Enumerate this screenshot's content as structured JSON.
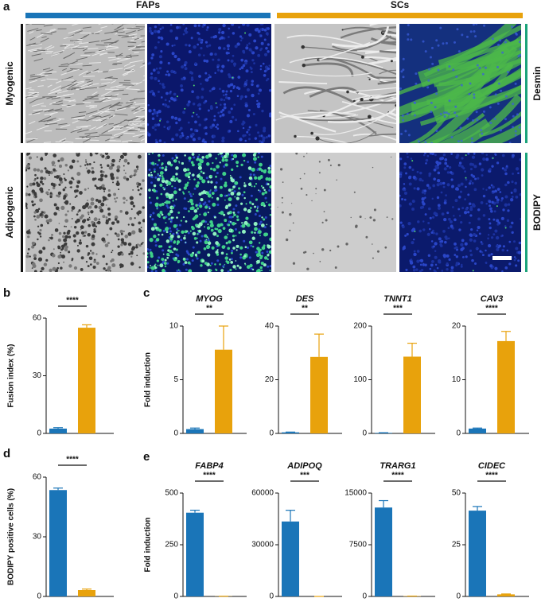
{
  "panel_a": {
    "label": "a",
    "columns": [
      "FAPs",
      "SCs"
    ],
    "column_colors": [
      "#1a75b8",
      "#e8a20c"
    ],
    "rows": [
      "Myogenic",
      "Adipogenic"
    ],
    "stains": [
      "Desmin",
      "BODIPY"
    ],
    "stain_color": "#1aa37a"
  },
  "chart_data": [
    {
      "type": "bar",
      "panel": "b",
      "ylabel": "Fusion index (%)",
      "values": [
        2.5,
        55
      ],
      "errors": [
        0.5,
        1.5
      ],
      "colors": [
        "#1a75b8",
        "#e8a20c"
      ],
      "ylim": [
        0,
        60
      ],
      "yticks": [
        0,
        30,
        60
      ],
      "significance": "****"
    },
    {
      "type": "bar",
      "panel": "c",
      "title": "MYOG",
      "ylabel": "Fold induction",
      "values": [
        0.4,
        7.8
      ],
      "errors": [
        0.1,
        2.2
      ],
      "colors": [
        "#1a75b8",
        "#e8a20c"
      ],
      "ylim": [
        0,
        10
      ],
      "yticks": [
        0,
        5,
        10
      ],
      "significance": "**"
    },
    {
      "type": "bar",
      "title": "DES",
      "values": [
        0.4,
        28.5
      ],
      "errors": [
        0.1,
        8.5
      ],
      "colors": [
        "#1a75b8",
        "#e8a20c"
      ],
      "ylim": [
        0,
        40
      ],
      "yticks": [
        0,
        20,
        40
      ],
      "significance": "**"
    },
    {
      "type": "bar",
      "title": "TNNT1",
      "values": [
        1,
        143
      ],
      "errors": [
        0.3,
        25
      ],
      "colors": [
        "#1a75b8",
        "#e8a20c"
      ],
      "ylim": [
        0,
        200
      ],
      "yticks": [
        0,
        100,
        200
      ],
      "significance": "***"
    },
    {
      "type": "bar",
      "title": "CAV3",
      "values": [
        0.9,
        17.2
      ],
      "errors": [
        0.1,
        1.8
      ],
      "colors": [
        "#1a75b8",
        "#e8a20c"
      ],
      "ylim": [
        0,
        20
      ],
      "yticks": [
        0,
        10,
        20
      ],
      "significance": "****"
    },
    {
      "type": "bar",
      "panel": "d",
      "ylabel": "BODIPY positive cells (%)",
      "values": [
        53.5,
        3.2
      ],
      "errors": [
        1,
        0.5
      ],
      "colors": [
        "#1a75b8",
        "#e8a20c"
      ],
      "ylim": [
        0,
        60
      ],
      "yticks": [
        0,
        30,
        60
      ],
      "significance": "****"
    },
    {
      "type": "bar",
      "panel": "e",
      "title": "FABP4",
      "ylabel": "Fold induction",
      "values": [
        405,
        1
      ],
      "errors": [
        12,
        0
      ],
      "colors": [
        "#1a75b8",
        "#e8a20c"
      ],
      "ylim": [
        0,
        500
      ],
      "yticks": [
        0,
        250,
        500
      ],
      "significance": "****"
    },
    {
      "type": "bar",
      "title": "ADIPOQ",
      "values": [
        43500,
        0
      ],
      "errors": [
        6500,
        0
      ],
      "colors": [
        "#1a75b8",
        "#e8a20c"
      ],
      "ylim": [
        0,
        60000
      ],
      "yticks": [
        0,
        30000,
        60000
      ],
      "significance": "***"
    },
    {
      "type": "bar",
      "title": "TRARG1",
      "values": [
        12900,
        50
      ],
      "errors": [
        1000,
        0
      ],
      "colors": [
        "#1a75b8",
        "#e8a20c"
      ],
      "ylim": [
        0,
        15000
      ],
      "yticks": [
        0,
        7500,
        15000
      ],
      "significance": "****"
    },
    {
      "type": "bar",
      "title": "CIDEC",
      "values": [
        41.5,
        1
      ],
      "errors": [
        2,
        0.2
      ],
      "colors": [
        "#1a75b8",
        "#e8a20c"
      ],
      "ylim": [
        0,
        50
      ],
      "yticks": [
        0,
        25,
        50
      ],
      "significance": "****"
    }
  ]
}
